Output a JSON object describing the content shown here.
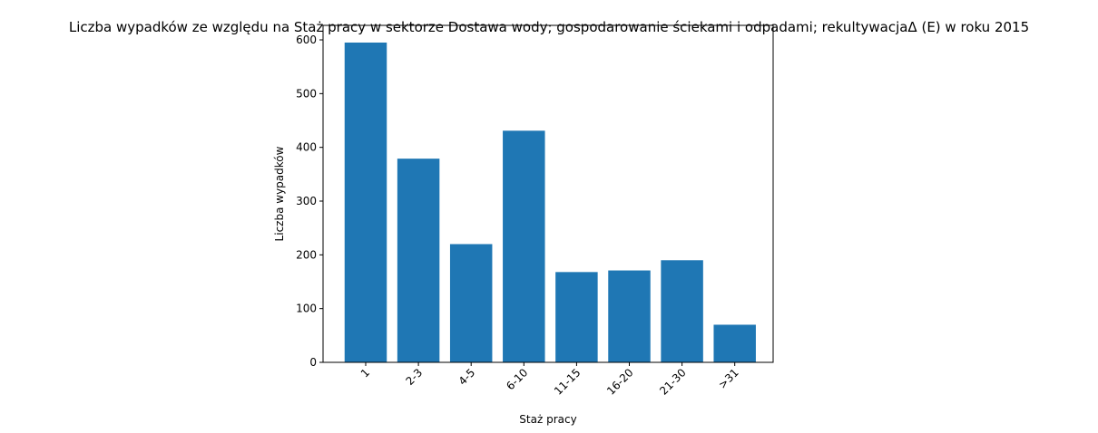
{
  "chart_data": {
    "type": "bar",
    "title": "Liczba wypadków ze względu na Staż pracy w sektorze Dostawa wody; gospodarowanie ściekami i odpadami;  rekultywacjaΔ  (E) w roku 2015",
    "xlabel": "Staż pracy",
    "ylabel": "Liczba wypadków",
    "categories": [
      "1",
      "2-3",
      "4-5",
      "6-10",
      "11-15",
      "16-20",
      "21-30",
      ">31"
    ],
    "values": [
      595,
      379,
      220,
      431,
      168,
      171,
      190,
      70
    ],
    "ylim": [
      0,
      627
    ],
    "yticks": [
      0,
      100,
      200,
      300,
      400,
      500,
      600
    ],
    "xtick_rotation": 45,
    "bar_color": "#1f77b4",
    "grid": false,
    "legend": "none"
  }
}
